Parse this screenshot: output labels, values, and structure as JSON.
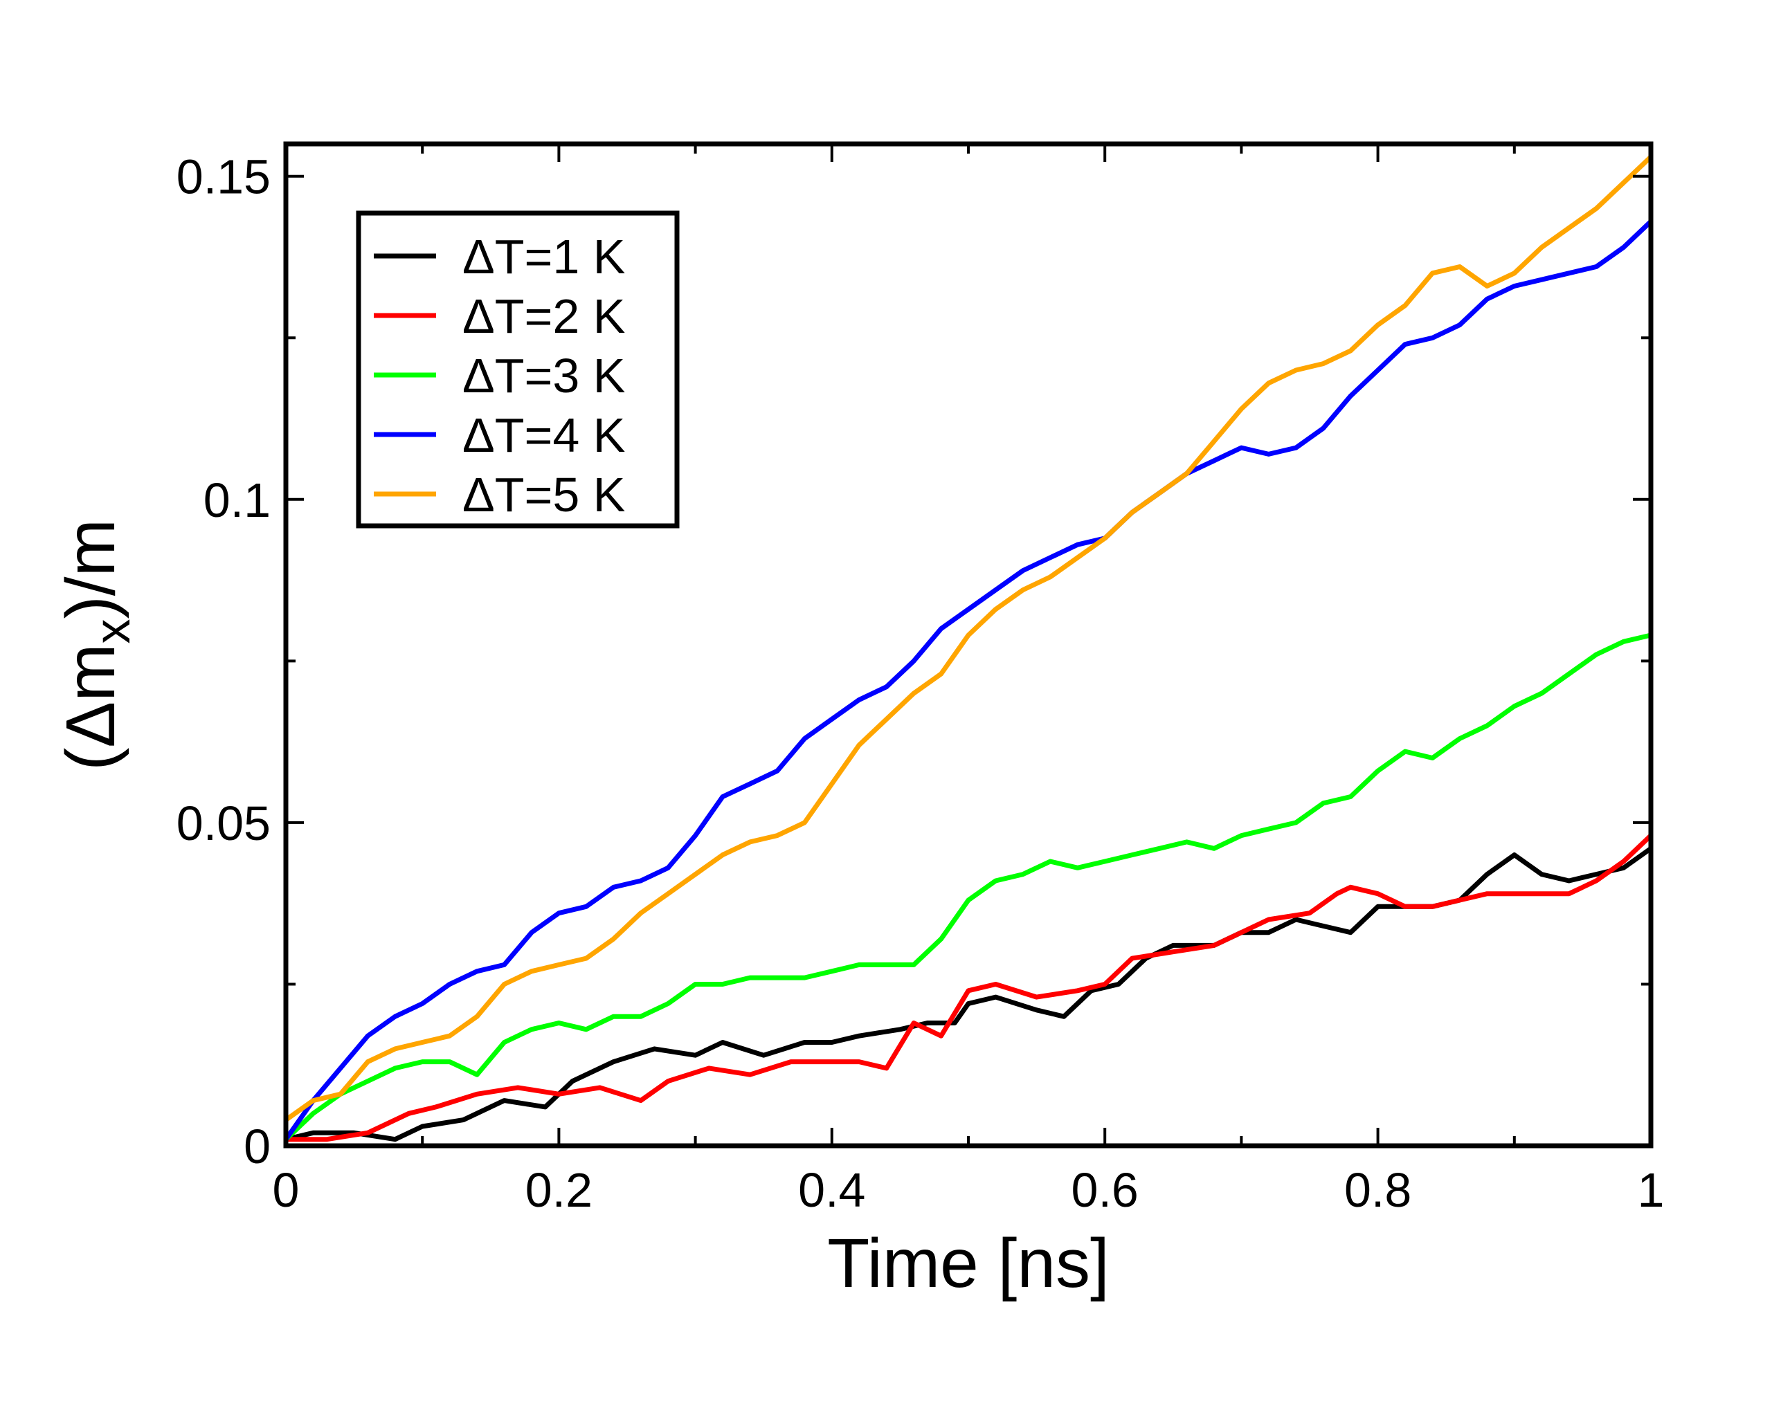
{
  "chart_data": {
    "type": "line",
    "xlabel": "Time [ns]",
    "ylabel_prefix": "(Δm",
    "ylabel_sub": "x",
    "ylabel_suffix": ")/m",
    "xlim": [
      0,
      1
    ],
    "ylim": [
      0,
      0.155
    ],
    "xticks": [
      0,
      0.2,
      0.4,
      0.6,
      0.8,
      1
    ],
    "xtick_labels": [
      "0",
      "0.2",
      "0.4",
      "0.6",
      "0.8",
      "1"
    ],
    "xminor": [
      0.1,
      0.3,
      0.5,
      0.7,
      0.9
    ],
    "yticks": [
      0,
      0.05,
      0.1,
      0.15
    ],
    "ytick_labels": [
      "0",
      "0.05",
      "0.1",
      "0.15"
    ],
    "yminor": [
      0.025,
      0.075,
      0.125
    ],
    "grid": false,
    "legend_position": "top-left",
    "series": [
      {
        "name": "ΔT=1 K",
        "color": "#000000",
        "x": [
          0,
          0.02,
          0.05,
          0.08,
          0.1,
          0.13,
          0.16,
          0.19,
          0.21,
          0.24,
          0.27,
          0.3,
          0.32,
          0.35,
          0.38,
          0.4,
          0.42,
          0.45,
          0.47,
          0.49,
          0.5,
          0.52,
          0.55,
          0.57,
          0.59,
          0.61,
          0.63,
          0.65,
          0.68,
          0.7,
          0.72,
          0.74,
          0.76,
          0.78,
          0.8,
          0.82,
          0.84,
          0.86,
          0.88,
          0.9,
          0.92,
          0.94,
          0.96,
          0.98,
          1.0
        ],
        "y": [
          0.001,
          0.002,
          0.002,
          0.001,
          0.003,
          0.004,
          0.007,
          0.006,
          0.01,
          0.013,
          0.015,
          0.014,
          0.016,
          0.014,
          0.016,
          0.016,
          0.017,
          0.018,
          0.019,
          0.019,
          0.022,
          0.023,
          0.021,
          0.02,
          0.024,
          0.025,
          0.029,
          0.031,
          0.031,
          0.033,
          0.033,
          0.035,
          0.034,
          0.033,
          0.037,
          0.037,
          0.037,
          0.038,
          0.042,
          0.045,
          0.042,
          0.041,
          0.042,
          0.043,
          0.046
        ]
      },
      {
        "name": "ΔT=2 K",
        "color": "#ff0000",
        "x": [
          0,
          0.03,
          0.06,
          0.09,
          0.11,
          0.14,
          0.17,
          0.2,
          0.23,
          0.26,
          0.28,
          0.31,
          0.34,
          0.37,
          0.39,
          0.42,
          0.44,
          0.46,
          0.48,
          0.5,
          0.52,
          0.55,
          0.58,
          0.6,
          0.62,
          0.65,
          0.68,
          0.7,
          0.72,
          0.75,
          0.77,
          0.78,
          0.8,
          0.82,
          0.84,
          0.86,
          0.88,
          0.9,
          0.92,
          0.94,
          0.96,
          0.98,
          1.0
        ],
        "y": [
          0.001,
          0.001,
          0.002,
          0.005,
          0.006,
          0.008,
          0.009,
          0.008,
          0.009,
          0.007,
          0.01,
          0.012,
          0.011,
          0.013,
          0.013,
          0.013,
          0.012,
          0.019,
          0.017,
          0.024,
          0.025,
          0.023,
          0.024,
          0.025,
          0.029,
          0.03,
          0.031,
          0.033,
          0.035,
          0.036,
          0.039,
          0.04,
          0.039,
          0.037,
          0.037,
          0.038,
          0.039,
          0.039,
          0.039,
          0.039,
          0.041,
          0.044,
          0.048
        ]
      },
      {
        "name": "ΔT=3 K",
        "color": "#00ff00",
        "x": [
          0,
          0.02,
          0.04,
          0.06,
          0.08,
          0.1,
          0.12,
          0.14,
          0.16,
          0.18,
          0.2,
          0.22,
          0.24,
          0.26,
          0.28,
          0.3,
          0.32,
          0.34,
          0.36,
          0.38,
          0.4,
          0.42,
          0.44,
          0.46,
          0.48,
          0.5,
          0.52,
          0.54,
          0.56,
          0.58,
          0.6,
          0.62,
          0.64,
          0.66,
          0.68,
          0.7,
          0.72,
          0.74,
          0.76,
          0.78,
          0.8,
          0.82,
          0.84,
          0.86,
          0.88,
          0.9,
          0.92,
          0.94,
          0.96,
          0.98,
          1.0
        ],
        "y": [
          0.001,
          0.005,
          0.008,
          0.01,
          0.012,
          0.013,
          0.013,
          0.011,
          0.016,
          0.018,
          0.019,
          0.018,
          0.02,
          0.02,
          0.022,
          0.025,
          0.025,
          0.026,
          0.026,
          0.026,
          0.027,
          0.028,
          0.028,
          0.028,
          0.032,
          0.038,
          0.041,
          0.042,
          0.044,
          0.043,
          0.044,
          0.045,
          0.046,
          0.047,
          0.046,
          0.048,
          0.049,
          0.05,
          0.053,
          0.054,
          0.058,
          0.061,
          0.06,
          0.063,
          0.065,
          0.068,
          0.07,
          0.073,
          0.076,
          0.078,
          0.079
        ]
      },
      {
        "name": "ΔT=4 K",
        "color": "#0000ff",
        "x": [
          0,
          0.02,
          0.04,
          0.06,
          0.08,
          0.1,
          0.12,
          0.14,
          0.16,
          0.18,
          0.2,
          0.22,
          0.24,
          0.26,
          0.28,
          0.3,
          0.32,
          0.34,
          0.36,
          0.38,
          0.4,
          0.42,
          0.44,
          0.46,
          0.48,
          0.5,
          0.52,
          0.54,
          0.56,
          0.58,
          0.6,
          0.62,
          0.64,
          0.66,
          0.68,
          0.7,
          0.72,
          0.74,
          0.76,
          0.78,
          0.8,
          0.82,
          0.84,
          0.86,
          0.88,
          0.9,
          0.92,
          0.94,
          0.96,
          0.98,
          1.0
        ],
        "y": [
          0.001,
          0.007,
          0.012,
          0.017,
          0.02,
          0.022,
          0.025,
          0.027,
          0.028,
          0.033,
          0.036,
          0.037,
          0.04,
          0.041,
          0.043,
          0.048,
          0.054,
          0.056,
          0.058,
          0.063,
          0.066,
          0.069,
          0.071,
          0.075,
          0.08,
          0.083,
          0.086,
          0.089,
          0.091,
          0.093,
          0.094,
          0.098,
          0.101,
          0.104,
          0.106,
          0.108,
          0.107,
          0.108,
          0.111,
          0.116,
          0.12,
          0.124,
          0.125,
          0.127,
          0.131,
          0.133,
          0.134,
          0.135,
          0.136,
          0.139,
          0.143
        ]
      },
      {
        "name": "ΔT=5 K",
        "color": "#ffa500",
        "x": [
          0,
          0.02,
          0.04,
          0.06,
          0.08,
          0.1,
          0.12,
          0.14,
          0.16,
          0.18,
          0.2,
          0.22,
          0.24,
          0.26,
          0.28,
          0.3,
          0.32,
          0.34,
          0.36,
          0.38,
          0.4,
          0.42,
          0.44,
          0.46,
          0.48,
          0.5,
          0.52,
          0.54,
          0.56,
          0.58,
          0.6,
          0.62,
          0.64,
          0.66,
          0.68,
          0.7,
          0.72,
          0.74,
          0.76,
          0.78,
          0.8,
          0.82,
          0.84,
          0.86,
          0.88,
          0.9,
          0.92,
          0.94,
          0.96,
          0.98,
          1.0
        ],
        "y": [
          0.004,
          0.007,
          0.008,
          0.013,
          0.015,
          0.016,
          0.017,
          0.02,
          0.025,
          0.027,
          0.028,
          0.029,
          0.032,
          0.036,
          0.039,
          0.042,
          0.045,
          0.047,
          0.048,
          0.05,
          0.056,
          0.062,
          0.066,
          0.07,
          0.073,
          0.079,
          0.083,
          0.086,
          0.088,
          0.091,
          0.094,
          0.098,
          0.101,
          0.104,
          0.109,
          0.114,
          0.118,
          0.12,
          0.121,
          0.123,
          0.127,
          0.13,
          0.135,
          0.136,
          0.133,
          0.135,
          0.139,
          0.142,
          0.145,
          0.149,
          0.153
        ]
      }
    ]
  }
}
